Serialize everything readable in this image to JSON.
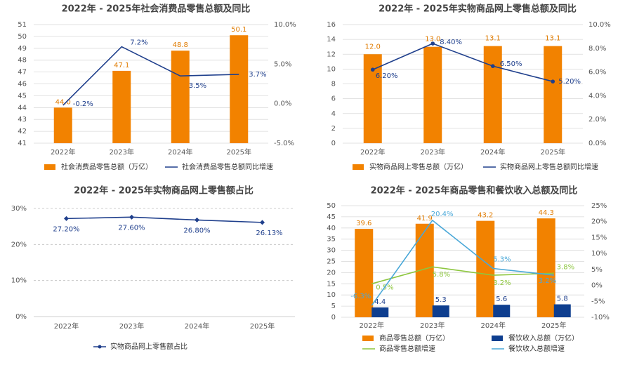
{
  "colors": {
    "bar": "#F28200",
    "line_dark": "#1F3F8C",
    "bar_blue": "#0E3E8F",
    "line_green": "#8DC63F",
    "line_cyan": "#4AA8D8",
    "label_orange": "#E07B00",
    "axis_text": "#555555",
    "grid": "#D9D9D9",
    "title": "#444444"
  },
  "chart_data": [
    {
      "type": "bar+line",
      "title": "2022年 - 2025年社会消费品零售总额及同比",
      "categories": [
        "2022年",
        "2023年",
        "2024年",
        "2025年"
      ],
      "bar_series": {
        "name": "社会消费品零售总额（万亿）",
        "values": [
          44.0,
          47.1,
          48.8,
          50.1
        ],
        "labels": [
          "44.0",
          "47.1",
          "48.8",
          "50.1"
        ]
      },
      "line_series": {
        "name": "社会消费品零售总额同比增速",
        "values": [
          -0.2,
          7.2,
          3.5,
          3.7
        ],
        "labels": [
          "-0.2%",
          "7.2%",
          "3.5%",
          "3.7%"
        ]
      },
      "y_left": {
        "min": 41,
        "max": 51,
        "ticks": [
          "41",
          "42",
          "43",
          "44",
          "45",
          "46",
          "47",
          "48",
          "49",
          "50",
          "51"
        ]
      },
      "y_right": {
        "min": -5,
        "max": 10,
        "ticks": [
          "-5.0%",
          "0.0%",
          "5.0%",
          "10.0%"
        ]
      }
    },
    {
      "type": "bar+line",
      "title": "2022年 - 2025年实物商品网上零售总额及同比",
      "categories": [
        "2022年",
        "2023年",
        "2024年",
        "2025年"
      ],
      "bar_series": {
        "name": "实物商品网上零售总额（万亿）",
        "values": [
          12.0,
          13.0,
          13.1,
          13.1
        ],
        "labels": [
          "12.0",
          "13.0",
          "13.1",
          "13.1"
        ]
      },
      "line_series": {
        "name": "实物商品网上零售总额同比增速",
        "values": [
          6.2,
          8.4,
          6.5,
          5.2
        ],
        "labels": [
          "6.20%",
          "8.40%",
          "6.50%",
          "5.20%"
        ]
      },
      "y_left": {
        "min": 0,
        "max": 16,
        "ticks": [
          "0",
          "2",
          "4",
          "6",
          "8",
          "10",
          "12",
          "14",
          "16"
        ]
      },
      "y_right": {
        "min": 0,
        "max": 10,
        "ticks": [
          "0.0%",
          "2.0%",
          "4.0%",
          "6.0%",
          "8.0%",
          "10.0%"
        ]
      }
    },
    {
      "type": "line",
      "title": "2022年 - 2025年实物商品网上零售额占比",
      "categories": [
        "2022年",
        "2023年",
        "2024年",
        "2025年"
      ],
      "line_series": {
        "name": "实物商品网上零售额占比",
        "values": [
          27.2,
          27.6,
          26.8,
          26.13
        ],
        "labels": [
          "27.20%",
          "27.60%",
          "26.80%",
          "26.13%"
        ]
      },
      "y_left": {
        "min": 0,
        "max": 30,
        "ticks": [
          "0%",
          "10%",
          "20%",
          "30%"
        ]
      }
    },
    {
      "type": "bar+line",
      "title": "2022年 - 2025年商品零售和餐饮收入总额及同比",
      "categories": [
        "2022年",
        "2023年",
        "2024年",
        "2025年"
      ],
      "bar_series": [
        {
          "name": "商品零售总额（万亿）",
          "values": [
            39.6,
            41.9,
            43.2,
            44.3
          ],
          "labels": [
            "39.6",
            "41.9",
            "43.2",
            "44.3"
          ]
        },
        {
          "name": "餐饮收入总额（万亿）",
          "values": [
            4.4,
            5.3,
            5.6,
            5.8
          ],
          "labels": [
            "4.4",
            "5.3",
            "5.6",
            "5.8"
          ]
        }
      ],
      "line_series": [
        {
          "name": "商品零售总额增速",
          "values": [
            0.5,
            5.8,
            3.2,
            3.8
          ],
          "labels": [
            "0.5%",
            "5.8%",
            "3.2%",
            "3.8%"
          ]
        },
        {
          "name": "餐饮收入总额增速",
          "values": [
            -6.3,
            20.4,
            5.3,
            3.2
          ],
          "labels": [
            "-6.3%",
            "20.4%",
            "5.3%",
            "3.2%"
          ]
        }
      ],
      "y_left": {
        "min": 0,
        "max": 50,
        "ticks": [
          "0",
          "5",
          "10",
          "15",
          "20",
          "25",
          "30",
          "35",
          "40",
          "45",
          "50"
        ]
      },
      "y_right": {
        "min": -10,
        "max": 25,
        "ticks": [
          "-10%",
          "-5%",
          "0%",
          "5%",
          "10%",
          "15%",
          "20%",
          "25%"
        ]
      }
    }
  ]
}
